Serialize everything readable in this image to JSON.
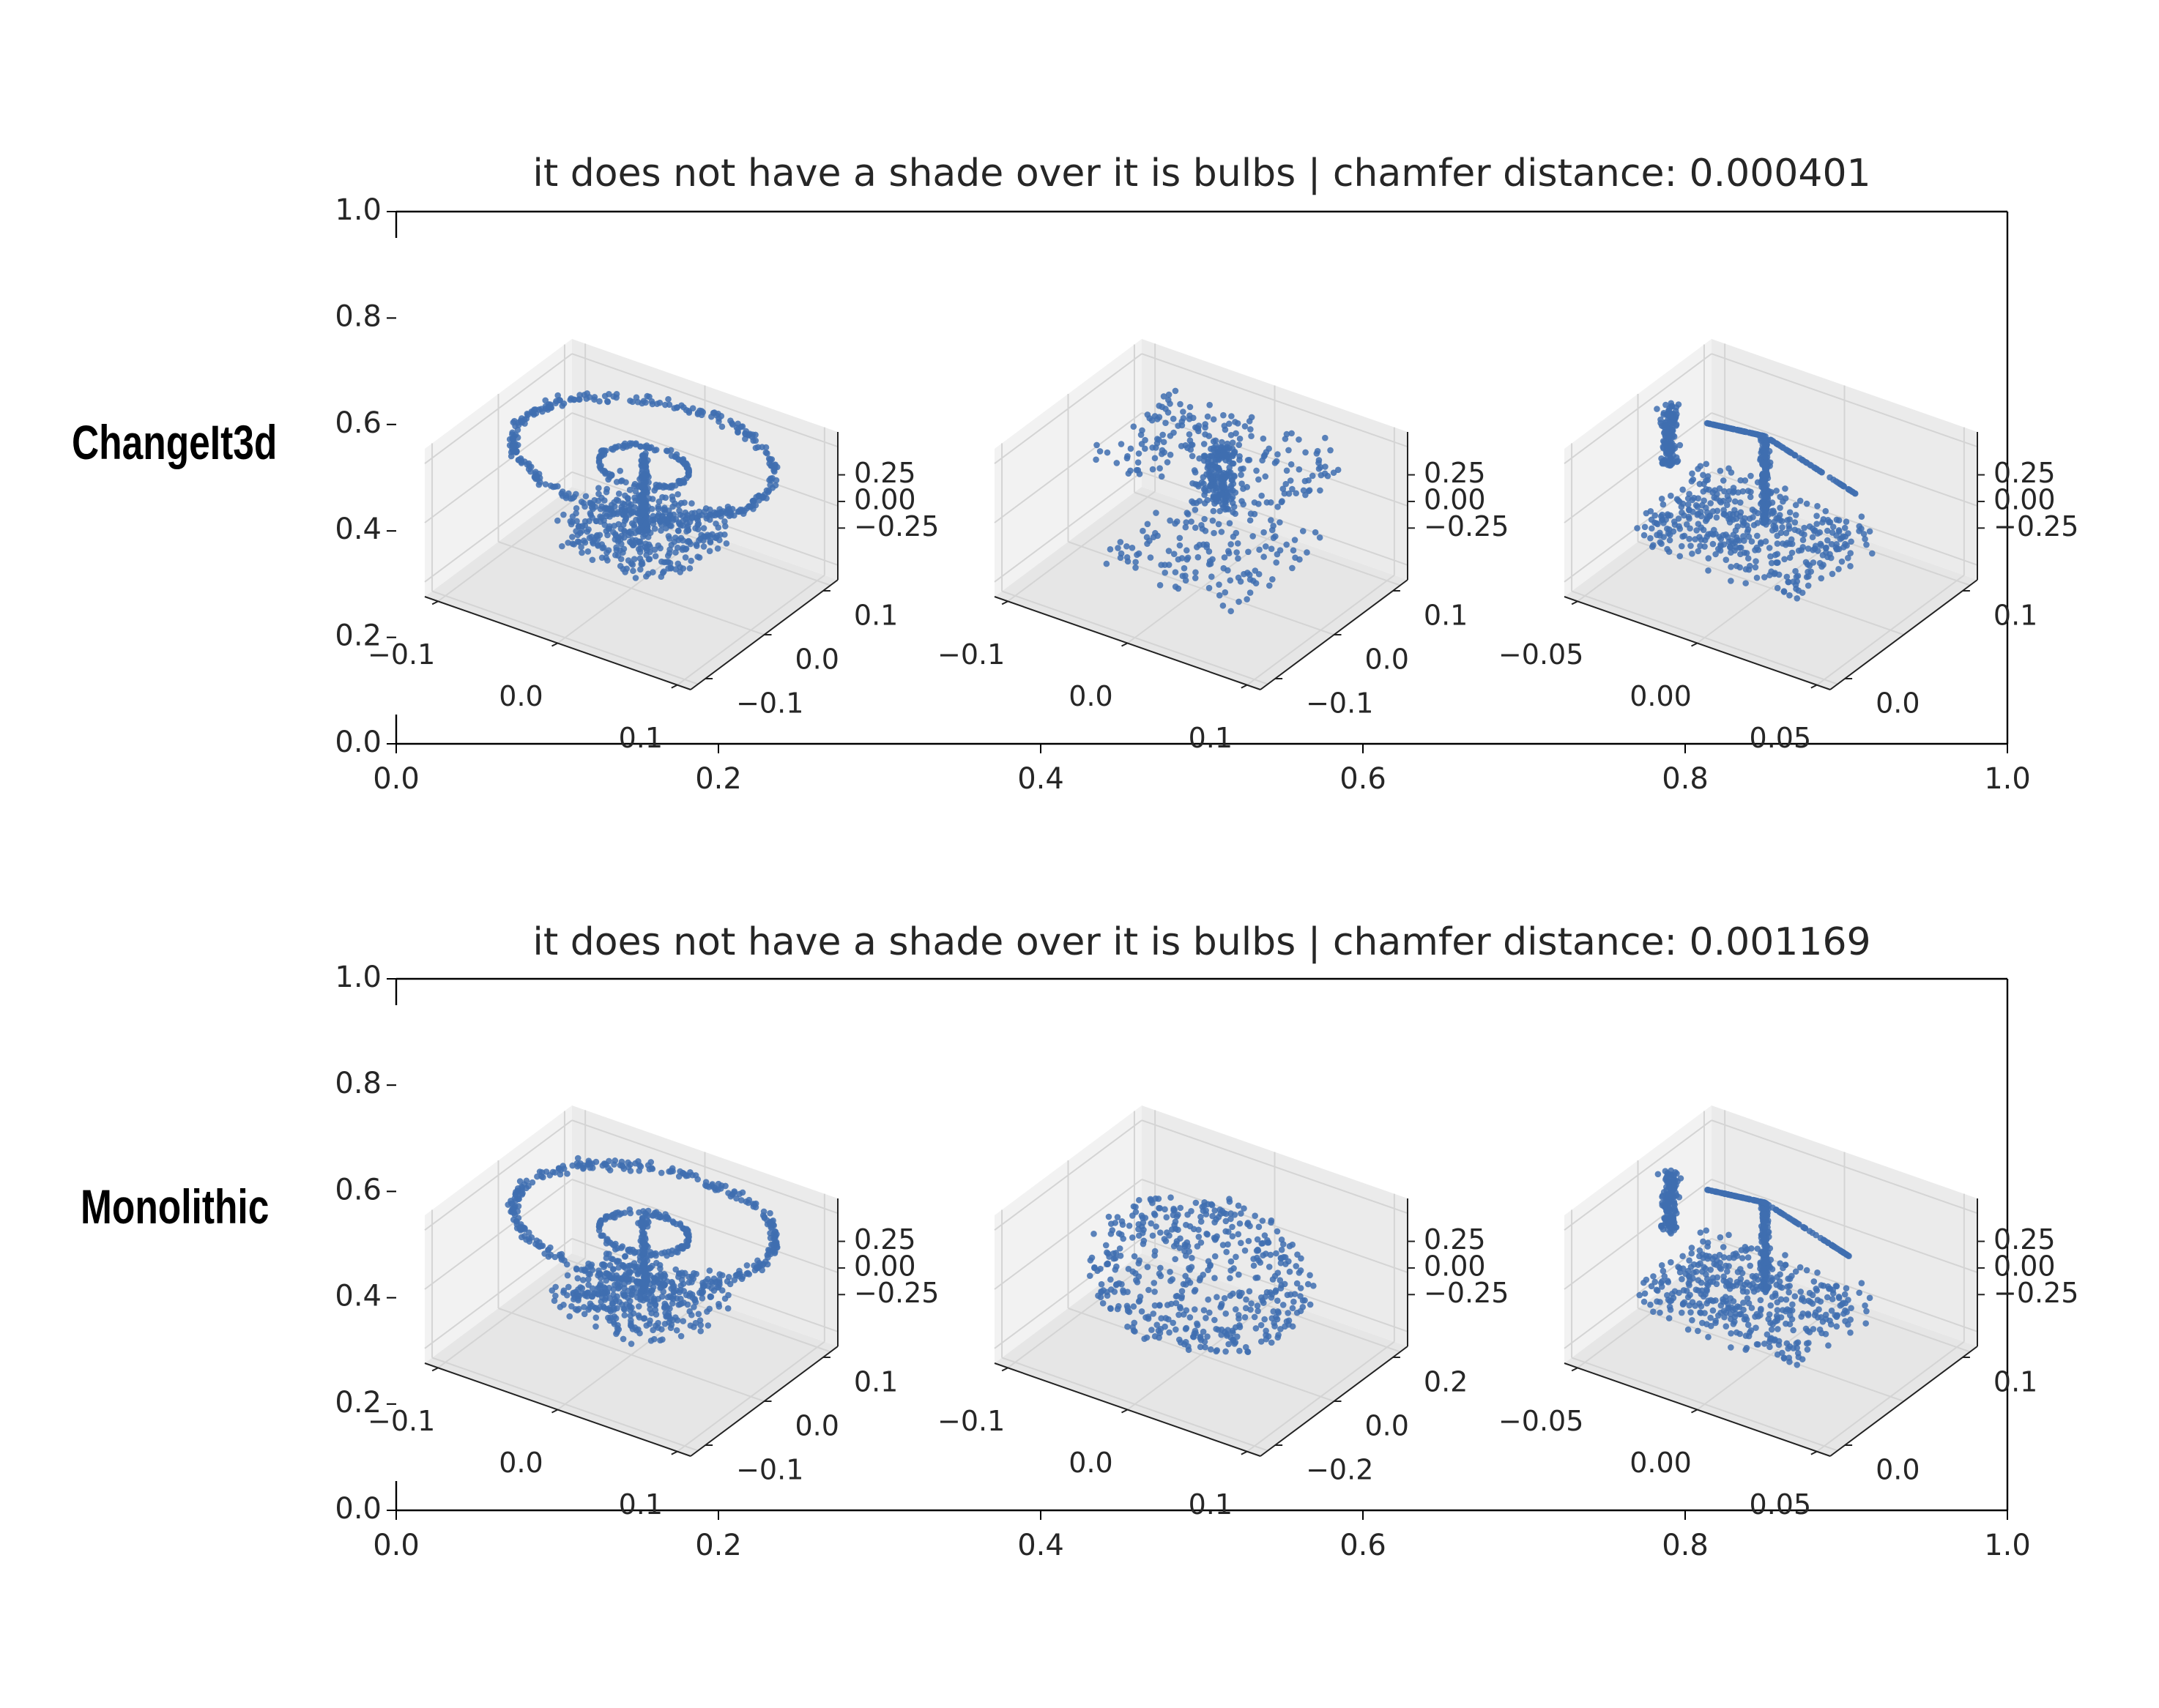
{
  "figure": {
    "point_color": "#3f6fb0",
    "rows": [
      {
        "row_label": "ChangeIt3d",
        "panel_index": 0
      },
      {
        "row_label": "Monolithic",
        "panel_index": 1
      }
    ]
  },
  "chart_data": [
    {
      "type": "scatter",
      "title": "it does not have a shade over it is bulbs | chamfer distance: 0.000401",
      "xlim": [
        0.0,
        1.0
      ],
      "ylim": [
        0.0,
        1.0
      ],
      "xticks": [
        "0.0",
        "0.2",
        "0.4",
        "0.6",
        "0.8",
        "1.0"
      ],
      "yticks": [
        "0.0",
        "0.2",
        "0.4",
        "0.6",
        "0.8",
        "1.0"
      ],
      "grid": false,
      "subplots": [
        {
          "shape": "lamp-ring",
          "x_ticks": [
            "−0.1",
            "0.0",
            "0.1"
          ],
          "y_ticks": [
            "−0.1",
            "0.0",
            "0.1"
          ],
          "z_ticks": [
            "−0.25",
            "0.00",
            "0.25"
          ]
        },
        {
          "shape": "lamp-scattered",
          "x_ticks": [
            "−0.1",
            "0.0",
            "0.1"
          ],
          "y_ticks": [
            "−0.1",
            "0.0",
            "0.1"
          ],
          "z_ticks": [
            "−0.25",
            "0.00",
            "0.25"
          ]
        },
        {
          "shape": "desk-lamp",
          "x_ticks": [
            "−0.05",
            "0.00",
            "0.05"
          ],
          "y_ticks": [
            "0.0",
            "0.1"
          ],
          "z_ticks": [
            "−0.25",
            "0.00",
            "0.25"
          ]
        }
      ]
    },
    {
      "type": "scatter",
      "title": "it does not have a shade over it is bulbs | chamfer distance: 0.001169",
      "xlim": [
        0.0,
        1.0
      ],
      "ylim": [
        0.0,
        1.0
      ],
      "xticks": [
        "0.0",
        "0.2",
        "0.4",
        "0.6",
        "0.8",
        "1.0"
      ],
      "yticks": [
        "0.0",
        "0.2",
        "0.4",
        "0.6",
        "0.8",
        "1.0"
      ],
      "grid": false,
      "subplots": [
        {
          "shape": "lamp-ring",
          "x_ticks": [
            "−0.1",
            "0.0",
            "0.1"
          ],
          "y_ticks": [
            "−0.1",
            "0.0",
            "0.1"
          ],
          "z_ticks": [
            "−0.25",
            "0.00",
            "0.25"
          ]
        },
        {
          "shape": "sphere-cloud",
          "x_ticks": [
            "−0.1",
            "0.0",
            "0.1"
          ],
          "y_ticks": [
            "−0.2",
            "0.0",
            "0.2"
          ],
          "z_ticks": [
            "−0.25",
            "0.00",
            "0.25"
          ]
        },
        {
          "shape": "desk-lamp",
          "x_ticks": [
            "−0.05",
            "0.00",
            "0.05"
          ],
          "y_ticks": [
            "0.0",
            "0.1"
          ],
          "z_ticks": [
            "−0.25",
            "0.00",
            "0.25"
          ]
        }
      ]
    }
  ]
}
